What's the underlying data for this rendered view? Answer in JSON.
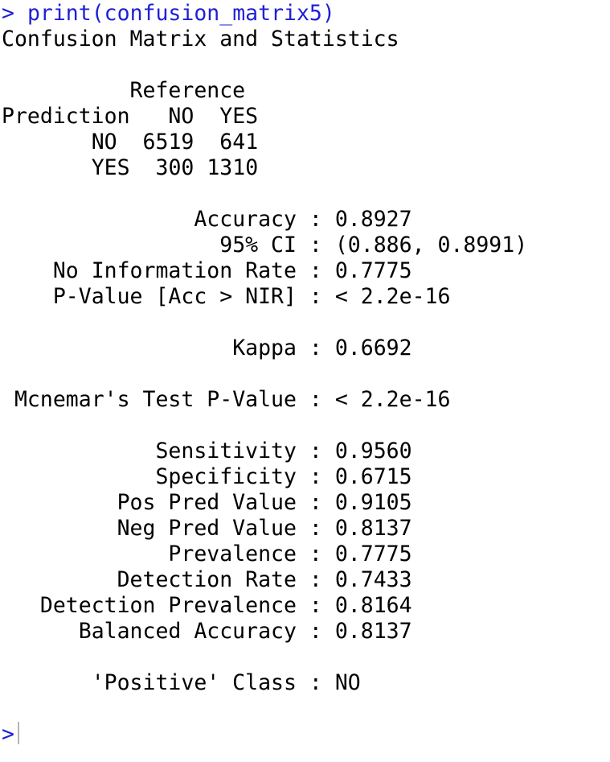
{
  "console": {
    "prompt_symbol": ">",
    "command": "print(confusion_matrix5)",
    "title": "Confusion Matrix and Statistics",
    "matrix": {
      "col_header": "Reference",
      "row_header": "Prediction",
      "col_labels": [
        "NO",
        "YES"
      ],
      "rows": [
        {
          "label": "NO",
          "values": [
            "6519",
            "641"
          ]
        },
        {
          "label": "YES",
          "values": [
            "300",
            "1310"
          ]
        }
      ]
    },
    "overall_stats": [
      {
        "label": "Accuracy",
        "value": "0.8927"
      },
      {
        "label": "95% CI",
        "value": "(0.886, 0.8991)"
      },
      {
        "label": "No Information Rate",
        "value": "0.7775"
      },
      {
        "label": "P-Value [Acc > NIR]",
        "value": "< 2.2e-16"
      }
    ],
    "kappa": {
      "label": "Kappa",
      "value": "0.6692"
    },
    "mcnemar": {
      "label": "Mcnemar's Test P-Value",
      "value": "< 2.2e-16"
    },
    "class_stats": [
      {
        "label": "Sensitivity",
        "value": "0.9560"
      },
      {
        "label": "Specificity",
        "value": "0.6715"
      },
      {
        "label": "Pos Pred Value",
        "value": "0.9105"
      },
      {
        "label": "Neg Pred Value",
        "value": "0.8137"
      },
      {
        "label": "Prevalence",
        "value": "0.7775"
      },
      {
        "label": "Detection Rate",
        "value": "0.7433"
      },
      {
        "label": "Detection Prevalence",
        "value": "0.8164"
      },
      {
        "label": "Balanced Accuracy",
        "value": "0.8137"
      }
    ],
    "positive_class": {
      "label": "'Positive' Class",
      "value": "NO"
    },
    "colors": {
      "command": "#1f1fd6",
      "output": "#000000",
      "background": "#ffffff"
    }
  }
}
